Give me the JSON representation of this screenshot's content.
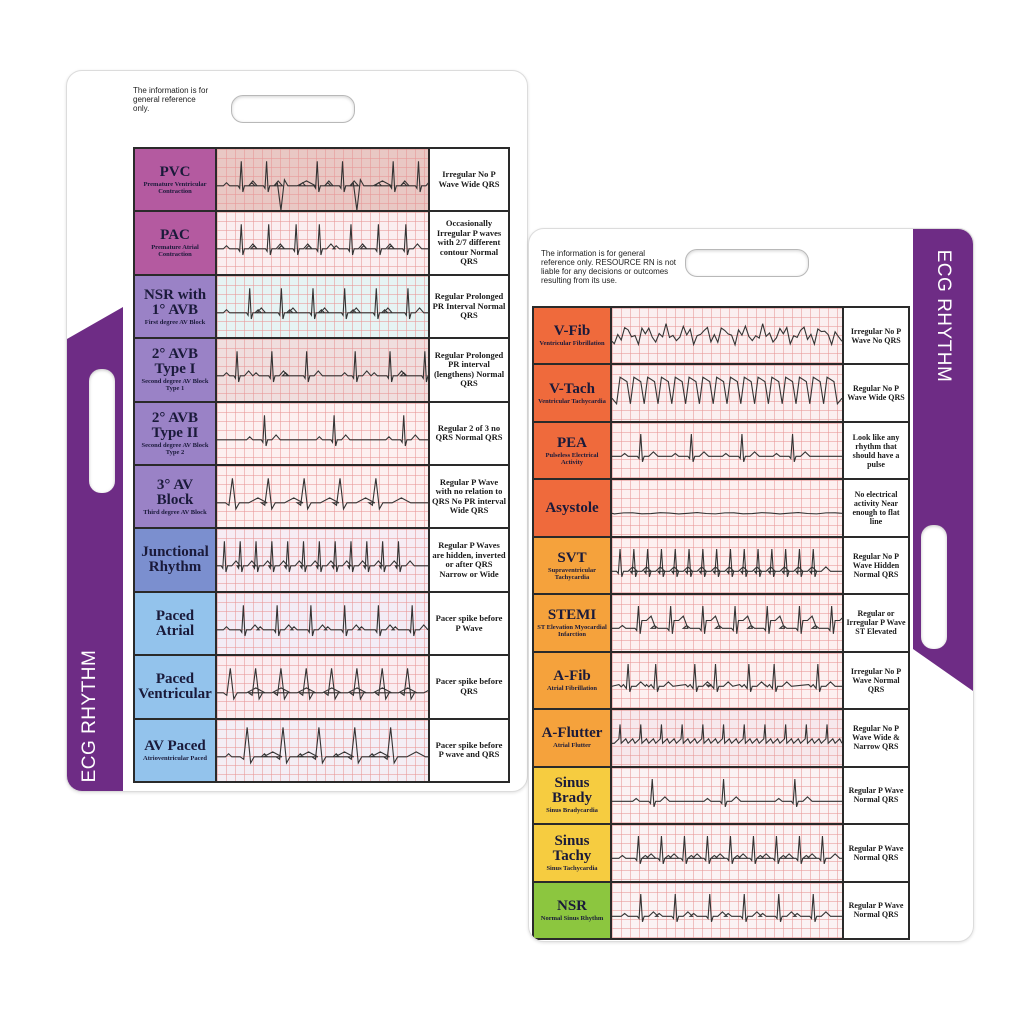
{
  "cards": [
    {
      "id": "left",
      "disclaimer": "The information is for general reference only.",
      "band_label": "ECG RHYTHM",
      "band_color": "#6e2c85",
      "rows": [
        {
          "name": "PVC",
          "sub": "Premature Ventricular Contraction",
          "desc": "Irregular No P Wave Wide QRS",
          "color": "#b45aa0",
          "strip_bg": "#e9c8c4",
          "wave": "pvc"
        },
        {
          "name": "PAC",
          "sub": "Premature Atrial Contraction",
          "desc": "Occasionally Irregular P waves with 2/7 different contour Normal QRS",
          "color": "#b45aa0",
          "strip_bg": "#fbeef0",
          "wave": "pac"
        },
        {
          "name": "NSR with 1° AVB",
          "sub": "First degree AV Block",
          "desc": "Regular Prolonged PR Interval Normal QRS",
          "color": "#9a82c6",
          "strip_bg": "#e6f4f4",
          "wave": "avb1"
        },
        {
          "name": "2° AVB Type I",
          "sub": "Second degree AV Block Type 1",
          "desc": "Regular Prolonged PR interval (lengthens) Normal QRS",
          "color": "#9a82c6",
          "strip_bg": "#f0dede",
          "wave": "avb2a"
        },
        {
          "name": "2° AVB Type II",
          "sub": "Second degree AV Block Type 2",
          "desc": "Regular 2 of 3 no QRS Normal QRS",
          "color": "#9a82c6",
          "strip_bg": "#fdf0f0",
          "wave": "avb2b"
        },
        {
          "name": "3° AV Block",
          "sub": "Third degree AV Block",
          "desc": "Regular P Wave with no relation to QRS No PR interval Wide QRS",
          "color": "#9a82c6",
          "strip_bg": "#fdf0f0",
          "wave": "avb3"
        },
        {
          "name": "Junctional Rhythm",
          "sub": "",
          "desc": "Regular P Waves are hidden, inverted or after QRS Narrow or Wide",
          "color": "#7b8fcf",
          "strip_bg": "#f7ecf4",
          "wave": "junctional"
        },
        {
          "name": "Paced Atrial",
          "sub": "",
          "desc": "Pacer spike before P Wave",
          "color": "#93c3ec",
          "strip_bg": "#f3ecf6",
          "wave": "paced_a"
        },
        {
          "name": "Paced Ventricular",
          "sub": "",
          "desc": "Pacer spike before QRS",
          "color": "#93c3ec",
          "strip_bg": "#fbecf0",
          "wave": "paced_v"
        },
        {
          "name": "AV Paced",
          "sub": "Atrioventricular Paced",
          "desc": "Pacer spike before P wave and QRS",
          "color": "#93c3ec",
          "strip_bg": "#f4eef5",
          "wave": "av_paced"
        }
      ]
    },
    {
      "id": "right",
      "disclaimer": "The information is for general reference only. RESOURCE RN is not liable for any decisions or outcomes resulting from its use.",
      "band_label": "ECG RHYTHM",
      "band_color": "#6e2c85",
      "rows": [
        {
          "name": "V-Fib",
          "sub": "Ventricular Fibrillation",
          "desc": "Irregular No P Wave No QRS",
          "color": "#ef6a3c",
          "strip_bg": "#fbeff0",
          "wave": "vfib"
        },
        {
          "name": "V-Tach",
          "sub": "Ventricular Tachycardia",
          "desc": "Regular No P Wave Wide QRS",
          "color": "#ef6a3c",
          "strip_bg": "#fbeff0",
          "wave": "vtach"
        },
        {
          "name": "PEA",
          "sub": "Pulseless Electrical Activity",
          "desc": "Look like any rhythm that should have a pulse",
          "color": "#ef6a3c",
          "strip_bg": "#fdf0f0",
          "wave": "pea"
        },
        {
          "name": "Asystole",
          "sub": "",
          "desc": "No electrical activity Near enough to flat line",
          "color": "#ef6a3c",
          "strip_bg": "#fdf0f0",
          "wave": "asystole"
        },
        {
          "name": "SVT",
          "sub": "Supraventricular Tachycardia",
          "desc": "Regular No P Wave Hidden Normal QRS",
          "color": "#f5a23c",
          "strip_bg": "#fdf0f0",
          "wave": "svt"
        },
        {
          "name": "STEMI",
          "sub": "ST Elevation Myocardial Infarction",
          "desc": "Regular or Irregular P Wave ST Elevated",
          "color": "#f5a23c",
          "strip_bg": "#fdf0f0",
          "wave": "stemi"
        },
        {
          "name": "A-Fib",
          "sub": "Atrial Fibrillation",
          "desc": "Irregular No P Wave Normal QRS",
          "color": "#f5a23c",
          "strip_bg": "#fdf0f0",
          "wave": "afib"
        },
        {
          "name": "A-Flutter",
          "sub": "Atrial Flutter",
          "desc": "Regular No P Wave Wide & Narrow QRS",
          "color": "#f5a23c",
          "strip_bg": "#f7e8ec",
          "wave": "aflutter"
        },
        {
          "name": "Sinus Brady",
          "sub": "Sinus Bradycardia",
          "desc": "Regular P Wave Normal QRS",
          "color": "#f6cc40",
          "strip_bg": "#fbf3f4",
          "wave": "brady"
        },
        {
          "name": "Sinus Tachy",
          "sub": "Sinus Tachycardia",
          "desc": "Regular P Wave Normal QRS",
          "color": "#f6cc40",
          "strip_bg": "#fbf3f4",
          "wave": "tachy"
        },
        {
          "name": "NSR",
          "sub": "Normal Sinus Rhythm",
          "desc": "Regular P Wave Normal QRS",
          "color": "#8cc63f",
          "strip_bg": "#fbf3f4",
          "wave": "nsr"
        }
      ]
    }
  ]
}
